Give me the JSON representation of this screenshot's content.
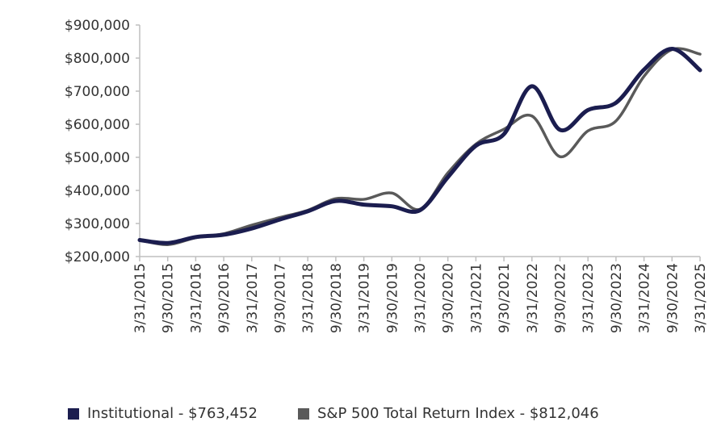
{
  "chart_data": {
    "type": "line",
    "categories": [
      "3/31/2015",
      "9/30/2015",
      "3/31/2016",
      "9/30/2016",
      "3/31/2017",
      "9/30/2017",
      "3/31/2018",
      "9/30/2018",
      "3/31/2019",
      "9/30/2019",
      "3/31/2020",
      "9/30/2020",
      "3/31/2021",
      "9/30/2021",
      "3/31/2022",
      "9/30/2022",
      "3/31/2023",
      "9/30/2023",
      "3/31/2024",
      "9/30/2024",
      "3/31/2025"
    ],
    "series": [
      {
        "name": "Institutional - $763,452",
        "color": "#1b1d4f",
        "values": [
          250000,
          241000,
          259000,
          266000,
          285000,
          312000,
          337000,
          368000,
          357000,
          352000,
          340000,
          440000,
          535000,
          570000,
          715000,
          583000,
          643000,
          665000,
          765000,
          828000,
          763452
        ]
      },
      {
        "name": "S&P 500 Total Return Index - $812,046",
        "color": "#5a5a5a",
        "values": [
          250000,
          236000,
          257000,
          269000,
          295000,
          318000,
          340000,
          375000,
          373000,
          392000,
          343000,
          453000,
          540000,
          585000,
          625000,
          502000,
          580000,
          610000,
          745000,
          826000,
          812046
        ]
      }
    ],
    "y_ticks": [
      "$900,000",
      "$800,000",
      "$700,000",
      "$600,000",
      "$500,000",
      "$400,000",
      "$300,000",
      "$200,000"
    ],
    "ylim": [
      200000,
      900000
    ],
    "grid": false,
    "legend_position": "bottom"
  }
}
